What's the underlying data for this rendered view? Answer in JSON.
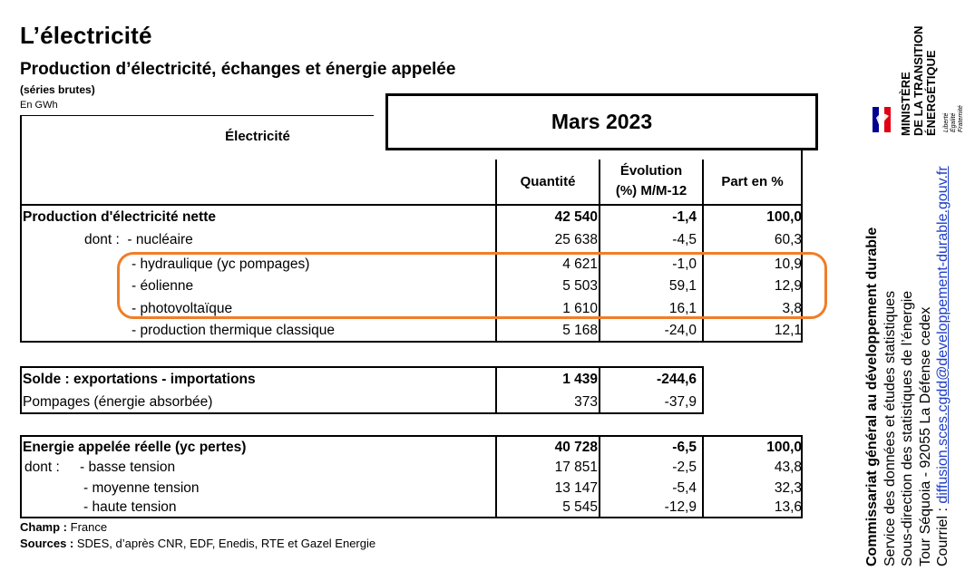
{
  "header": {
    "title": "L’électricité",
    "subtitle": "Production d’électricité, échanges et énergie appelée",
    "series_note": "(séries brutes)",
    "unit": "En GWh"
  },
  "table": {
    "period": "Mars 2023",
    "section_label": "Électricité",
    "columns": {
      "quantity": "Quantité",
      "evolution_line1": "Évolution",
      "evolution_line2": "(%) M/M-12",
      "share": "Part en %"
    },
    "production": [
      {
        "label": "Production d'électricité nette",
        "quantity": "42 540",
        "evolution": "-1,4",
        "share": "100,0"
      },
      {
        "label": "dont :  - nucléaire",
        "quantity": "25 638",
        "evolution": "-4,5",
        "share": "60,3"
      },
      {
        "label": "- hydraulique (yc pompages)",
        "quantity": "4 621",
        "evolution": "-1,0",
        "share": "10,9"
      },
      {
        "label": "- éolienne",
        "quantity": "5 503",
        "evolution": "59,1",
        "share": "12,9"
      },
      {
        "label": "- photovoltaïque",
        "quantity": "1 610",
        "evolution": "16,1",
        "share": "3,8"
      },
      {
        "label": "- production thermique classique",
        "quantity": "5 168",
        "evolution": "-24,0",
        "share": "12,1"
      }
    ],
    "exchanges": [
      {
        "label": "Solde : exportations - importations",
        "quantity": "1 439",
        "evolution": "-244,6"
      },
      {
        "label": "Pompages (énergie absorbée)",
        "quantity": "373",
        "evolution": "-37,9"
      }
    ],
    "consumption": [
      {
        "label": "Energie appelée réelle (yc pertes)",
        "quantity": "40 728",
        "evolution": "-6,5",
        "share": "100,0"
      },
      {
        "label": "dont :",
        "sublabel": "- basse tension",
        "quantity": "17 851",
        "evolution": "-2,5",
        "share": "43,8"
      },
      {
        "label": "- moyenne tension",
        "quantity": "13 147",
        "evolution": "-5,4",
        "share": "32,3"
      },
      {
        "label": "- haute tension",
        "quantity": "5 545",
        "evolution": "-12,9",
        "share": "13,6"
      }
    ]
  },
  "footer": {
    "scope_label": "Champ :",
    "scope_value": "France",
    "sources_label": "Sources :",
    "sources_value": "SDES, d’après CNR, EDF, Enedis, RTE et Gazel Energie"
  },
  "sidebar": {
    "line1": "Commissariat général au développement durable",
    "line2": "Service des données et études statistiques",
    "line3": "Sous-direction des statistiques de l’énergie",
    "line4": "Tour Séquoia - 92055 La Défense cedex",
    "line5_prefix": "Courriel : ",
    "email": "diffusion.sces.cgdd@developpement-durable.gouv.fr",
    "ministry_1": "MINISTÈRE",
    "ministry_2": "DE LA TRANSITION",
    "ministry_3": "ÉNERGÉTIQUE",
    "motto_1": "Liberté",
    "motto_2": "Égalité",
    "motto_3": "Fraternité"
  },
  "colors": {
    "highlight": "#f07d28",
    "link": "#1f3fc6",
    "flag_blue": "#000091",
    "flag_red": "#e1000f"
  }
}
